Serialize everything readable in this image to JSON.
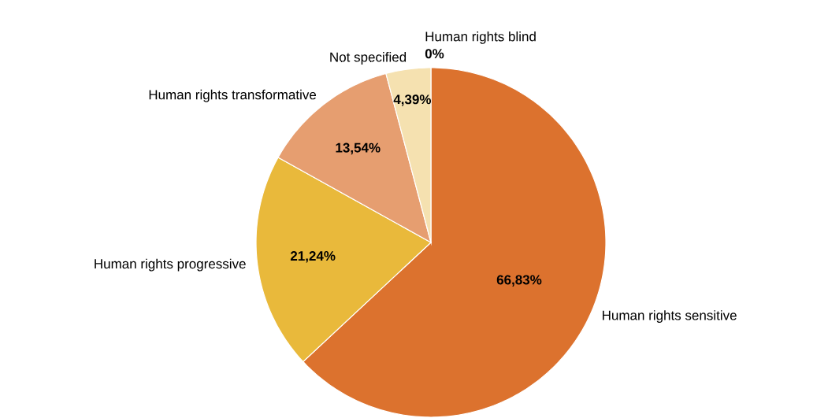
{
  "chart_data": {
    "type": "pie",
    "categories": [
      "Human rights sensitive",
      "Human rights progressive",
      "Human rights transformative",
      "Not specified",
      "Human rights blind"
    ],
    "values": [
      66.83,
      21.24,
      13.54,
      4.39,
      0
    ],
    "value_labels": [
      "66,83%",
      "21,24%",
      "13,54%",
      "4,39%",
      "0%"
    ],
    "colors": [
      "#dc722e",
      "#e9b93b",
      "#e69e70",
      "#f5e1b0",
      "#f0d9a0"
    ]
  }
}
